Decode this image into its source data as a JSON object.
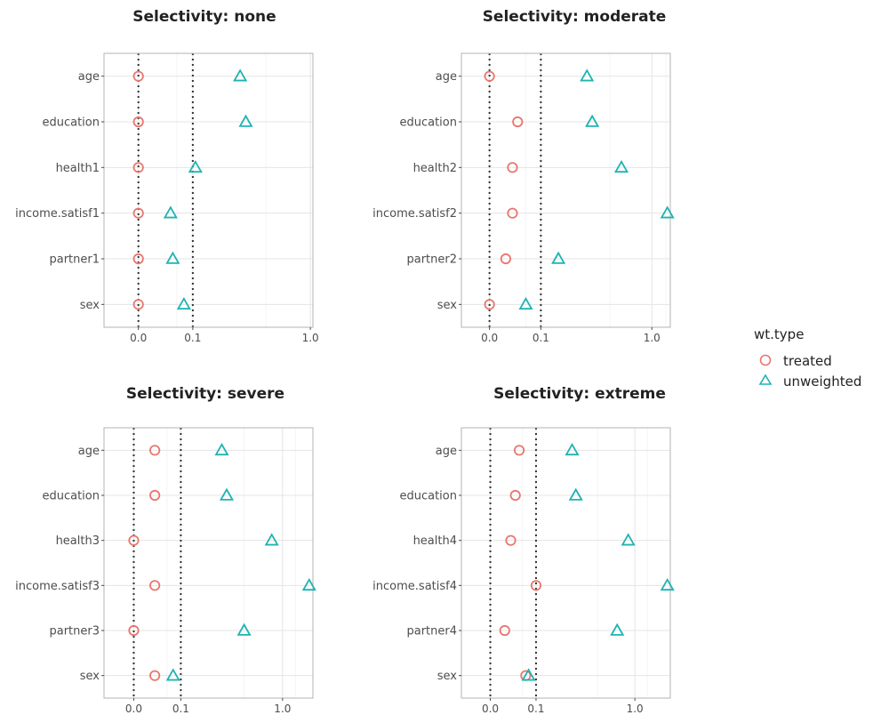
{
  "colors": {
    "treated": "#e8776f",
    "unweighted": "#1fb3b3"
  },
  "legend": {
    "title": "wt.type",
    "entries": [
      {
        "key": "treated",
        "label": "treated",
        "marker": "circle-icon"
      },
      {
        "key": "unweighted",
        "label": "unweighted",
        "marker": "triangle-icon"
      }
    ]
  },
  "chart_data": [
    {
      "type": "scatter",
      "title": "Selectivity: none",
      "categories": [
        "age",
        "education",
        "health1",
        "income.satisf1",
        "partner1",
        "sex"
      ],
      "xticks": [
        0.0,
        0.1,
        1.0
      ],
      "xtick_labels": [
        "0.0",
        "0.1",
        "1.0"
      ],
      "vlines": [
        0.0,
        0.1
      ],
      "xlim": [
        -0.04,
        1.03
      ],
      "series": [
        {
          "name": "treated",
          "values": [
            0.0,
            0.0,
            0.0,
            0.0,
            0.0,
            0.0
          ]
        },
        {
          "name": "unweighted",
          "values": [
            0.35,
            0.39,
            0.11,
            0.035,
            0.04,
            0.07
          ]
        }
      ]
    },
    {
      "type": "scatter",
      "title": "Selectivity: moderate",
      "categories": [
        "age",
        "education",
        "health2",
        "income.satisf2",
        "partner2",
        "sex"
      ],
      "xticks": [
        0.0,
        0.1,
        1.0
      ],
      "xtick_labels": [
        "0.0",
        "0.1",
        "1.0"
      ],
      "vlines": [
        0.0,
        0.1
      ],
      "xlim": [
        -0.03,
        1.24
      ],
      "series": [
        {
          "name": "treated",
          "values": [
            0.0,
            0.03,
            0.02,
            0.02,
            0.01,
            0.0
          ]
        },
        {
          "name": "unweighted",
          "values": [
            0.36,
            0.4,
            0.66,
            1.2,
            0.18,
            0.05
          ]
        }
      ]
    },
    {
      "type": "scatter",
      "title": "Selectivity: severe",
      "categories": [
        "age",
        "education",
        "health3",
        "income.satisf3",
        "partner3",
        "sex"
      ],
      "xticks": [
        0.0,
        0.1,
        1.0
      ],
      "xtick_labels": [
        "0.0",
        "0.1",
        "1.0"
      ],
      "vlines": [
        0.0,
        0.1
      ],
      "xlim": [
        -0.04,
        1.45
      ],
      "series": [
        {
          "name": "treated",
          "values": [
            0.02,
            0.02,
            0.0,
            0.02,
            0.0,
            0.02
          ]
        },
        {
          "name": "unweighted",
          "values": [
            0.35,
            0.39,
            0.86,
            1.39,
            0.55,
            0.07
          ]
        }
      ]
    },
    {
      "type": "scatter",
      "title": "Selectivity: extreme",
      "categories": [
        "age",
        "education",
        "health4",
        "income.satisf4",
        "partner4",
        "sex"
      ],
      "xticks": [
        0.0,
        0.1,
        1.0
      ],
      "xtick_labels": [
        "0.0",
        "0.1",
        "1.0"
      ],
      "vlines": [
        0.0,
        0.1
      ],
      "xlim": [
        -0.04,
        1.55
      ],
      "series": [
        {
          "name": "treated",
          "values": [
            0.04,
            0.03,
            0.02,
            0.1,
            0.01,
            0.06
          ]
        },
        {
          "name": "unweighted",
          "values": [
            0.32,
            0.35,
            0.91,
            1.5,
            0.77,
            0.07
          ]
        }
      ]
    }
  ]
}
